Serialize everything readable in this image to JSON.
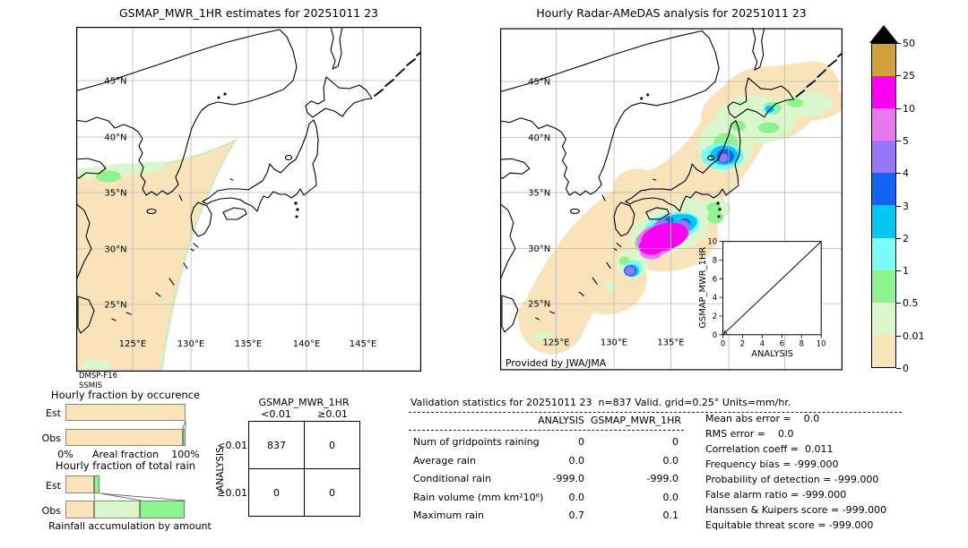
{
  "left_map": {
    "title": "GSMAP_MWR_1HR estimates for 20251011 23",
    "lat_ticks": [
      "45°N",
      "40°N",
      "35°N",
      "30°N",
      "25°N"
    ],
    "lon_ticks": [
      "125°E",
      "130°E",
      "135°E",
      "140°E",
      "145°E"
    ],
    "source_lines": [
      "DMSP-F16",
      "SSMIS"
    ]
  },
  "right_map": {
    "title": "Hourly Radar-AMeDAS analysis for 20251011 23",
    "lat_ticks": [
      "45°N",
      "40°N",
      "35°N",
      "30°N",
      "25°N"
    ],
    "lon_ticks": [
      "125°E",
      "130°E",
      "135°E"
    ],
    "credit": "Provided by JWA/JMA",
    "inset": {
      "xlabel": "ANALYSIS",
      "ylabel": "GSMAP_MWR_1HR",
      "x_ticks": [
        "0",
        "2",
        "4",
        "6",
        "8",
        "10"
      ],
      "y_ticks": [
        "10",
        "8",
        "6",
        "4",
        "2",
        "0"
      ],
      "xlim": [
        0,
        10
      ],
      "ylim": [
        0,
        10
      ],
      "diagonal": true
    }
  },
  "colorbar": {
    "units": "mm/hr",
    "tick_labels": [
      "50",
      "25",
      "10",
      "5",
      "4",
      "3",
      "2",
      "1",
      "0.5",
      "0.01",
      "0"
    ],
    "colors_top_to_bottom": [
      "#d2a13b",
      "#fb00f2",
      "#e878f0",
      "#9678f6",
      "#1263f2",
      "#00c6f2",
      "#7cfbf6",
      "#8ef28e",
      "#d9f6cc",
      "#f9e3ba"
    ],
    "overflow_color": "#000000"
  },
  "chart_data": [
    {
      "type": "bar",
      "title": "Hourly fraction by occurence",
      "xlabel": "Areal fraction",
      "x_min_label": "0%",
      "x_max_label": "100%",
      "xlim": [
        0,
        100
      ],
      "categories": [
        "Est",
        "Obs"
      ],
      "series": [
        {
          "name": "0-0.01 mm/hr",
          "color": "#f9e3ba",
          "values": [
            100,
            97.5
          ]
        },
        {
          "name": "0.5-1 mm/hr",
          "color": "#8ef28e",
          "values": [
            0,
            2.5
          ]
        }
      ]
    },
    {
      "type": "bar",
      "title": "Hourly fraction of total rain",
      "xlabel": "Rainfall accumulation by amount",
      "xlim": [
        0,
        100
      ],
      "categories": [
        "Est",
        "Obs"
      ],
      "series": [
        {
          "name": "0-0.01 mm/hr",
          "color": "#f9e3ba",
          "values": [
            24,
            24
          ]
        },
        {
          "name": "0.01-0.5 mm/hr",
          "color": "#d9f6cc",
          "values": [
            0,
            38
          ]
        },
        {
          "name": "0.5-1 mm/hr",
          "color": "#8ef28e",
          "values": [
            4.5,
            37
          ]
        }
      ]
    },
    {
      "type": "table",
      "title": "GSMAP_MWR_1HR",
      "row_axis_label": "ANALYSIS",
      "col_headers": [
        "<0.01",
        "≥0.01"
      ],
      "row_headers": [
        "<0.01",
        "≥0.01"
      ],
      "cells": [
        [
          "837",
          "0"
        ],
        [
          "0",
          "0"
        ]
      ]
    }
  ],
  "stats": {
    "header": "Validation statistics for 20251011 23  n=837 Valid. grid=0.25° Units=mm/hr.",
    "col_headers": [
      "ANALYSIS",
      "GSMAP_MWR_1HR"
    ],
    "rows": [
      {
        "label": "Num of gridpoints raining",
        "analysis": "0",
        "gsmap": "0"
      },
      {
        "label": "Average rain",
        "analysis": "0.0",
        "gsmap": "0.0"
      },
      {
        "label": "Conditional rain",
        "analysis": "-999.0",
        "gsmap": "-999.0"
      },
      {
        "label": "Rain volume (mm km²10⁶)",
        "analysis": "0.0",
        "gsmap": "0.0"
      },
      {
        "label": "Maximum rain",
        "analysis": "0.7",
        "gsmap": "0.1"
      }
    ],
    "summary_lines": [
      "Mean abs error =    0.0",
      "RMS error =    0.0",
      "Correlation coeff =  0.011",
      "Frequency bias = -999.000",
      "Probability of detection = -999.000",
      "False alarm ratio = -999.000",
      "Hanssen & Kuipers score = -999.000",
      "Equitable threat score = -999.000"
    ]
  }
}
